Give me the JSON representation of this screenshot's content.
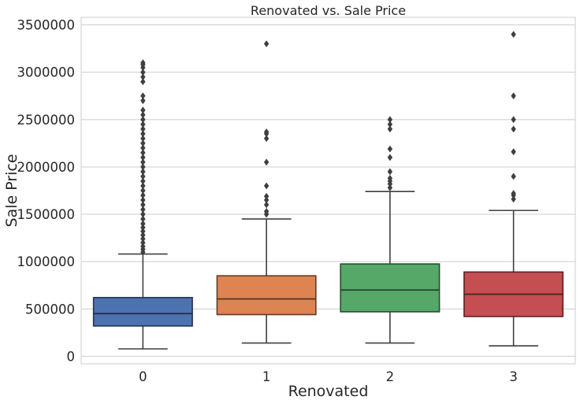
{
  "chart_data": {
    "type": "box",
    "title": "Renovated vs. Sale Price",
    "xlabel": "Renovated",
    "ylabel": "Sale Price",
    "categories": [
      "0",
      "1",
      "2",
      "3"
    ],
    "y_ticks": [
      0,
      500000,
      1000000,
      1500000,
      2000000,
      2500000,
      3000000,
      3500000
    ],
    "y_tick_labels": [
      "0",
      "500000",
      "1000000",
      "1500000",
      "2000000",
      "2500000",
      "3000000",
      "3500000"
    ],
    "ylim": [
      -80000,
      3580000
    ],
    "grid": "horizontal",
    "colors": [
      "#4c72b0",
      "#dd8452",
      "#55a868",
      "#c44e52"
    ],
    "boxes": [
      {
        "category": "0",
        "whisker_low": 78000,
        "q1": 320000,
        "median": 450000,
        "q3": 620000,
        "whisker_high": 1080000,
        "outliers": [
          1100000,
          1130000,
          1160000,
          1200000,
          1240000,
          1280000,
          1320000,
          1360000,
          1400000,
          1450000,
          1500000,
          1550000,
          1600000,
          1650000,
          1700000,
          1750000,
          1800000,
          1850000,
          1900000,
          1950000,
          2000000,
          2050000,
          2100000,
          2150000,
          2200000,
          2250000,
          2300000,
          2350000,
          2400000,
          2450000,
          2500000,
          2550000,
          2600000,
          2700000,
          2750000,
          2900000,
          2950000,
          3000000,
          3050000,
          3080000,
          3100000
        ]
      },
      {
        "category": "1",
        "whisker_low": 140000,
        "q1": 440000,
        "median": 605000,
        "q3": 850000,
        "whisker_high": 1450000,
        "outliers": [
          1500000,
          1530000,
          1600000,
          1650000,
          1690000,
          1800000,
          2050000,
          2300000,
          2350000,
          2370000,
          3300000
        ]
      },
      {
        "category": "2",
        "whisker_low": 140000,
        "q1": 470000,
        "median": 700000,
        "q3": 975000,
        "whisker_high": 1740000,
        "outliers": [
          1780000,
          1820000,
          1850000,
          1880000,
          1950000,
          2100000,
          2190000,
          2400000,
          2450000,
          2500000
        ]
      },
      {
        "category": "3",
        "whisker_low": 110000,
        "q1": 420000,
        "median": 655000,
        "q3": 890000,
        "whisker_high": 1540000,
        "outliers": [
          1660000,
          1700000,
          1720000,
          1900000,
          2160000,
          2400000,
          2500000,
          2750000,
          3400000
        ]
      }
    ]
  }
}
